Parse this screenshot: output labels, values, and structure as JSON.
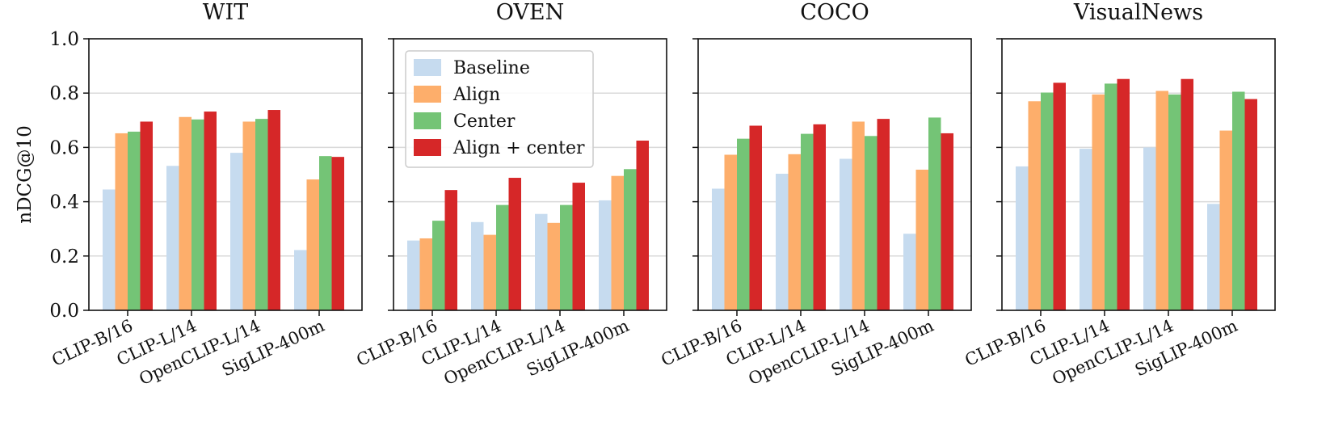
{
  "chart_data": {
    "type": "bar",
    "ylabel": "nDCG@10",
    "ylim": [
      0,
      1.0
    ],
    "yticks": [
      "0.0",
      "0.2",
      "0.4",
      "0.6",
      "0.8",
      "1.0"
    ],
    "grid": "horizontal",
    "legend_placement": "upper-left of second panel",
    "categories": [
      "CLIP-B/16",
      "CLIP-L/14",
      "OpenCLIP-L/14",
      "SigLIP-400m"
    ],
    "series": [
      {
        "name": "Baseline",
        "color": "#c6dbef"
      },
      {
        "name": "Align",
        "color": "#fdae6b"
      },
      {
        "name": "Center",
        "color": "#74c476"
      },
      {
        "name": "Align + center",
        "color": "#d62728"
      }
    ],
    "panels": [
      {
        "title": "WIT",
        "values": [
          [
            0.445,
            0.652,
            0.658,
            0.695
          ],
          [
            0.532,
            0.712,
            0.703,
            0.732
          ],
          [
            0.58,
            0.695,
            0.705,
            0.738
          ],
          [
            0.222,
            0.482,
            0.568,
            0.565
          ]
        ]
      },
      {
        "title": "OVEN",
        "values": [
          [
            0.257,
            0.265,
            0.33,
            0.443
          ],
          [
            0.325,
            0.278,
            0.388,
            0.488
          ],
          [
            0.355,
            0.322,
            0.388,
            0.47
          ],
          [
            0.405,
            0.495,
            0.52,
            0.625
          ]
        ]
      },
      {
        "title": "COCO",
        "values": [
          [
            0.448,
            0.573,
            0.632,
            0.68
          ],
          [
            0.503,
            0.575,
            0.65,
            0.685
          ],
          [
            0.558,
            0.695,
            0.642,
            0.705
          ],
          [
            0.282,
            0.518,
            0.71,
            0.652
          ]
        ]
      },
      {
        "title": "VisualNews",
        "values": [
          [
            0.53,
            0.77,
            0.802,
            0.838
          ],
          [
            0.595,
            0.795,
            0.835,
            0.852
          ],
          [
            0.6,
            0.808,
            0.795,
            0.852
          ],
          [
            0.392,
            0.662,
            0.805,
            0.778
          ]
        ]
      }
    ]
  }
}
